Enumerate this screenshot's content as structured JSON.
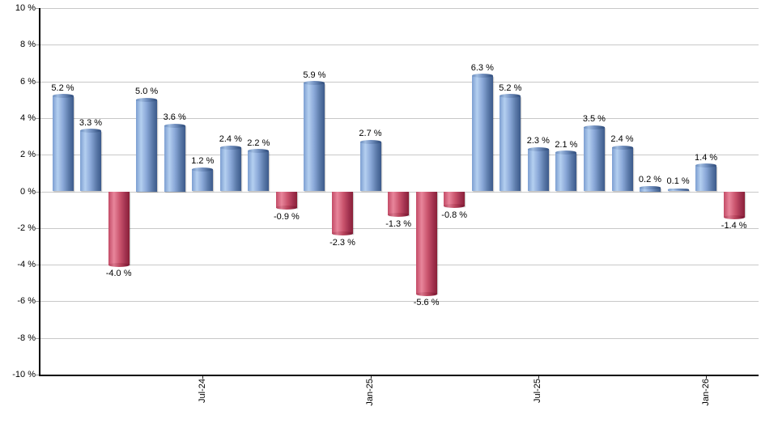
{
  "chart_data": {
    "type": "bar",
    "title": "",
    "xlabel": "",
    "ylabel": "",
    "ylim": [
      -10,
      10
    ],
    "y_tick_step": 2,
    "grid": true,
    "legend": false,
    "y_tick_labels": [
      "10 %",
      "8 %",
      "6 %",
      "4 %",
      "2 %",
      "0 %",
      "-2 %",
      "-4 %",
      "-6 %",
      "-8 %",
      "-10 %"
    ],
    "values": [
      5.2,
      3.3,
      -4.0,
      5.0,
      3.6,
      1.2,
      2.4,
      2.2,
      -0.9,
      5.9,
      -2.3,
      2.7,
      -1.3,
      -5.6,
      -0.8,
      6.3,
      5.2,
      2.3,
      2.1,
      3.5,
      2.4,
      0.2,
      0.1,
      1.4,
      -1.4
    ],
    "bar_labels": [
      "5.2 %",
      "3.3 %",
      "-4.0 %",
      "5.0 %",
      "3.6 %",
      "1.2 %",
      "2.4 %",
      "2.2 %",
      "-0.9 %",
      "5.9 %",
      "-2.3 %",
      "2.7 %",
      "-1.3 %",
      "-5.6 %",
      "-0.8 %",
      "6.3 %",
      "5.2 %",
      "2.3 %",
      "2.1 %",
      "3.5 %",
      "2.4 %",
      "0.2 %",
      "0.1 %",
      "1.4 %",
      "-1.4 %"
    ],
    "x_ticks": [
      {
        "label": "Jul-24",
        "bar_index": 5
      },
      {
        "label": "Jan-25",
        "bar_index": 11
      },
      {
        "label": "Jul-25",
        "bar_index": 17
      },
      {
        "label": "Jan-26",
        "bar_index": 23
      }
    ],
    "colors": {
      "positive_bar": "#7d9fd1",
      "positive_bar_highlight": "#b4cff0",
      "positive_bar_dark": "#3c5a8b",
      "negative_bar": "#c34b66",
      "negative_bar_highlight": "#e8859b",
      "negative_bar_dark": "#8a2038",
      "gridline": "#c8c8c8",
      "axis": "#000000",
      "label_text": "#000000",
      "background": "#ffffff"
    }
  }
}
